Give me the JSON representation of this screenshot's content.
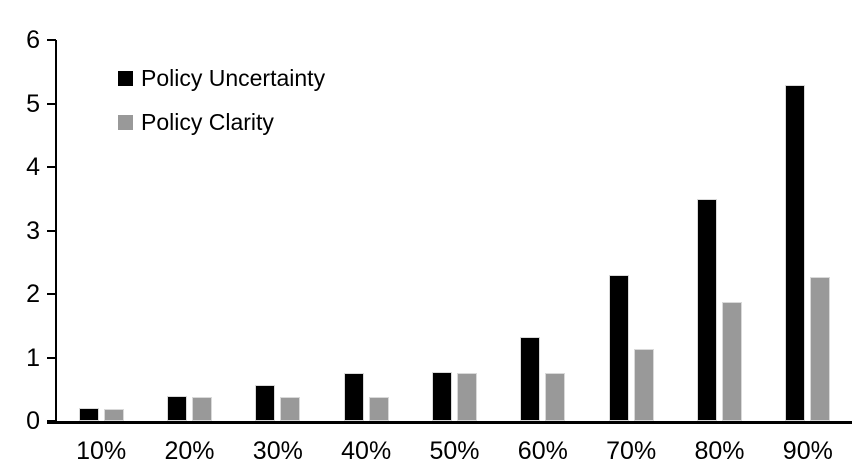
{
  "chart_data": {
    "type": "bar",
    "title": "",
    "xlabel": "",
    "ylabel": "",
    "categories": [
      "10%",
      "20%",
      "30%",
      "40%",
      "50%",
      "60%",
      "70%",
      "80%",
      "90%"
    ],
    "series": [
      {
        "name": "Policy Uncertainty",
        "color": "#000000",
        "values": [
          0.2,
          0.39,
          0.56,
          0.76,
          0.77,
          1.32,
          2.3,
          3.49,
          5.29
        ]
      },
      {
        "name": "Policy Clarity",
        "color": "#999999",
        "values": [
          0.19,
          0.38,
          0.38,
          0.38,
          0.76,
          0.76,
          1.13,
          1.87,
          2.27
        ]
      }
    ],
    "ylim": [
      0,
      6
    ],
    "yticks": [
      "0",
      "1",
      "2",
      "3",
      "4",
      "5",
      "6"
    ],
    "grid": false,
    "legend_position": "top-left",
    "axis_color": "#000000",
    "bar_outline_color": "#d9d9d9",
    "background_color": "#ffffff"
  }
}
